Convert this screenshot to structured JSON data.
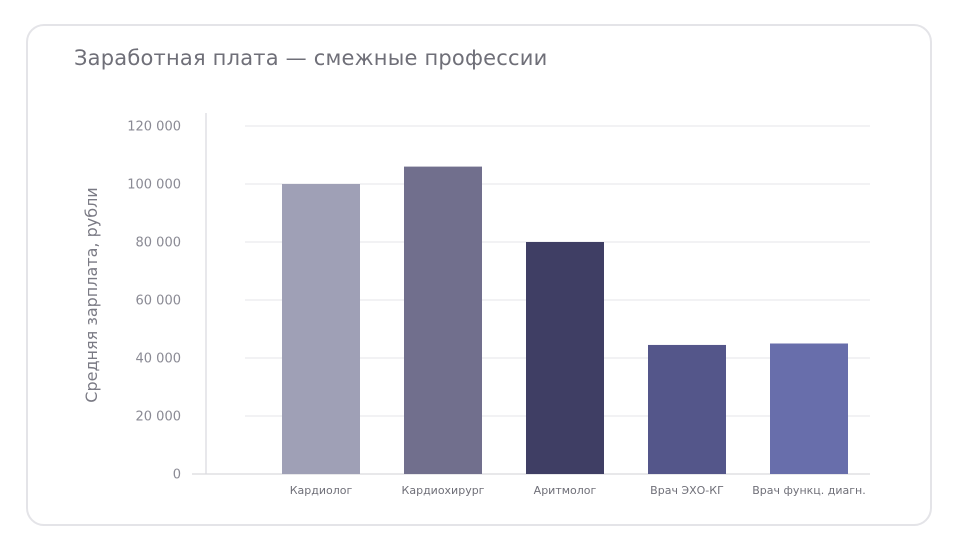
{
  "chart_data": {
    "type": "bar",
    "title": "Заработная плата — смежные профессии",
    "xlabel": "",
    "ylabel": "Средняя зарплата, рубли",
    "categories": [
      "Кардиолог",
      "Кардиохирург",
      "Аритмолог",
      "Врач ЭХО-КГ",
      "Врач функц. диагн."
    ],
    "values": [
      100000,
      106000,
      80000,
      44500,
      45000
    ],
    "ylim": [
      0,
      120000
    ],
    "yticks": [
      0,
      20000,
      40000,
      60000,
      80000,
      100000,
      120000
    ],
    "ytick_labels": [
      "0",
      "20 000",
      "40 000",
      "60 000",
      "80 000",
      "100 000",
      "120 000"
    ],
    "bar_colors": [
      "#9fa0b6",
      "#716f8d",
      "#3f3e64",
      "#54568a",
      "#686eab"
    ],
    "grid": true,
    "legend": "none"
  }
}
